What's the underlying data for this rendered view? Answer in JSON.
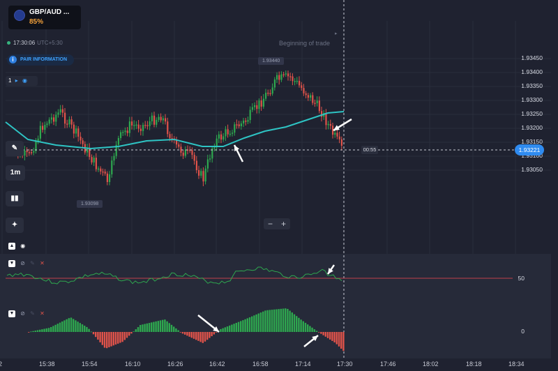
{
  "asset": {
    "name": "GBP/AUD ...",
    "payout": "85%"
  },
  "clock": {
    "time": "17:30:06",
    "timezone": "UTC+5:30"
  },
  "pair_info_label": "PAIR INFORMATION",
  "interval_count": "1",
  "timeframe_label": "1m",
  "beginning_label": "Beginning of trade",
  "price_axis": [
    "1.93450",
    "1.93400",
    "1.93350",
    "1.93300",
    "1.93250",
    "1.93200",
    "1.93150",
    "1.93100",
    "1.93050"
  ],
  "current_price": "1.93221",
  "countdown": "00:55",
  "high_marker": "1.93440",
  "low_marker": "1.93098",
  "zoom": {
    "minus": "−",
    "plus": "+"
  },
  "time_axis": [
    "22",
    "15:38",
    "15:54",
    "16:10",
    "16:26",
    "16:42",
    "16:58",
    "17:14",
    "17:30",
    "17:46",
    "18:02",
    "18:18",
    "18:34"
  ],
  "indicator1_level": "50",
  "indicator2_level": "0",
  "colors": {
    "bull": "#2ea84f",
    "bear": "#e0534a",
    "ma": "#2ec4c4",
    "accent": "#2f8bf0",
    "payout": "#f6a23a"
  }
}
